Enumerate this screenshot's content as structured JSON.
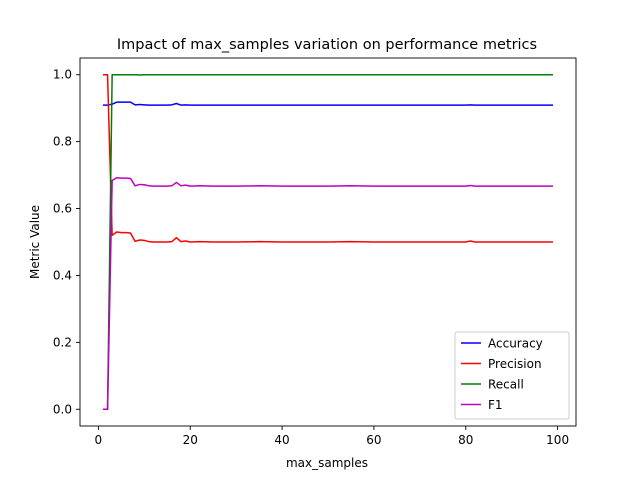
{
  "chart_data": {
    "type": "line",
    "title": "Impact of max_samples variation on performance metrics",
    "xlabel": "max_samples",
    "ylabel": "Metric Value",
    "xlim": [
      -4,
      104
    ],
    "ylim": [
      -0.05,
      1.05
    ],
    "xticks": [
      0,
      20,
      40,
      60,
      80,
      100
    ],
    "xtick_labels": [
      "0",
      "20",
      "40",
      "60",
      "80",
      "100"
    ],
    "yticks": [
      0.0,
      0.2,
      0.4,
      0.6,
      0.8,
      1.0
    ],
    "ytick_labels": [
      "0.0",
      "0.2",
      "0.4",
      "0.6",
      "0.8",
      "1.0"
    ],
    "grid": false,
    "legend_position": "lower-right",
    "x": [
      1,
      2,
      3,
      4,
      5,
      6,
      7,
      8,
      9,
      10,
      11,
      12,
      13,
      14,
      15,
      16,
      17,
      18,
      19,
      20,
      22,
      25,
      30,
      35,
      40,
      45,
      50,
      55,
      60,
      65,
      70,
      75,
      80,
      81,
      82,
      85,
      90,
      95,
      99
    ],
    "series": [
      {
        "name": "Accuracy",
        "color": "#0000ff",
        "values": [
          0.909,
          0.909,
          0.912,
          0.918,
          0.918,
          0.918,
          0.918,
          0.91,
          0.911,
          0.91,
          0.909,
          0.909,
          0.909,
          0.909,
          0.909,
          0.91,
          0.914,
          0.909,
          0.91,
          0.909,
          0.909,
          0.909,
          0.909,
          0.909,
          0.909,
          0.909,
          0.909,
          0.909,
          0.909,
          0.909,
          0.909,
          0.909,
          0.909,
          0.91,
          0.909,
          0.909,
          0.909,
          0.909,
          0.909
        ]
      },
      {
        "name": "Precision",
        "color": "#ff0000",
        "values": [
          1.0,
          1.0,
          0.52,
          0.53,
          0.528,
          0.528,
          0.527,
          0.502,
          0.506,
          0.505,
          0.501,
          0.5,
          0.5,
          0.5,
          0.5,
          0.501,
          0.513,
          0.501,
          0.503,
          0.5,
          0.501,
          0.5,
          0.5,
          0.501,
          0.5,
          0.5,
          0.5,
          0.501,
          0.5,
          0.5,
          0.5,
          0.5,
          0.5,
          0.503,
          0.5,
          0.5,
          0.5,
          0.5,
          0.5
        ]
      },
      {
        "name": "Recall",
        "color": "#008000",
        "values": [
          0.0,
          0.0,
          1.0,
          1.0,
          1.0,
          1.0,
          1.0,
          1.0,
          0.999,
          1.0,
          1.0,
          1.0,
          1.0,
          1.0,
          1.0,
          1.0,
          1.0,
          1.0,
          1.0,
          1.0,
          1.0,
          1.0,
          1.0,
          1.0,
          1.0,
          1.0,
          1.0,
          1.0,
          1.0,
          1.0,
          1.0,
          1.0,
          1.0,
          1.0,
          1.0,
          1.0,
          1.0,
          1.0,
          1.0
        ]
      },
      {
        "name": "F1",
        "color": "#bf00bf",
        "values": [
          0.0,
          0.0,
          0.684,
          0.692,
          0.691,
          0.691,
          0.69,
          0.668,
          0.672,
          0.671,
          0.668,
          0.667,
          0.667,
          0.667,
          0.667,
          0.668,
          0.678,
          0.668,
          0.67,
          0.667,
          0.668,
          0.667,
          0.667,
          0.668,
          0.667,
          0.667,
          0.667,
          0.668,
          0.667,
          0.667,
          0.667,
          0.667,
          0.667,
          0.669,
          0.667,
          0.667,
          0.667,
          0.667,
          0.667
        ]
      }
    ]
  }
}
